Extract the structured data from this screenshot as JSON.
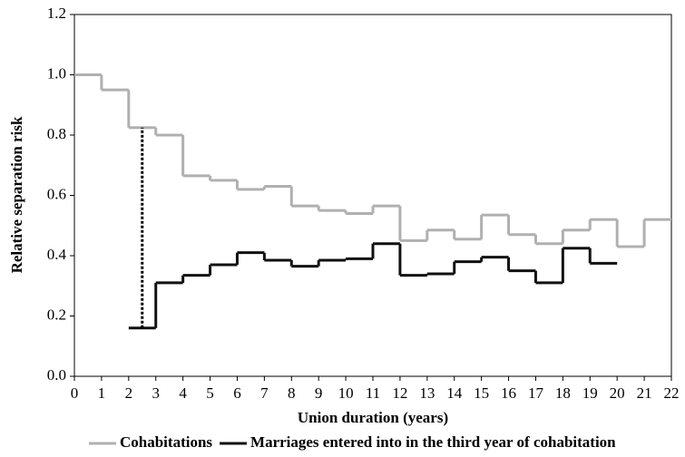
{
  "chart_data": {
    "type": "step",
    "xlabel": "Union duration  (years)",
    "ylabel": "Relative separation risk",
    "xlim": [
      0,
      22
    ],
    "xticks": [
      0,
      1,
      2,
      3,
      4,
      5,
      6,
      7,
      8,
      9,
      10,
      11,
      12,
      13,
      14,
      15,
      16,
      17,
      18,
      19,
      20,
      21,
      22
    ],
    "ylim": [
      0,
      1.2
    ],
    "yticks": [
      {
        "value": 0,
        "label": "0.0"
      },
      0.2,
      0.4,
      0.6,
      0.8,
      {
        "value": 1,
        "label": "1.0"
      },
      1.2
    ],
    "series": [
      {
        "name": "Cohabitations",
        "color": "#b0b0b0",
        "bins": [
          0,
          1,
          2,
          3,
          4,
          5,
          6,
          7,
          8,
          9,
          10,
          11,
          12,
          13,
          14,
          15,
          16,
          17,
          18,
          19,
          20,
          21,
          22
        ],
        "values": [
          1.0,
          0.95,
          0.825,
          0.8,
          0.665,
          0.65,
          0.62,
          0.63,
          0.565,
          0.55,
          0.54,
          0.565,
          0.45,
          0.485,
          0.455,
          0.535,
          0.47,
          0.44,
          0.485,
          0.52,
          0.43,
          0.52
        ]
      },
      {
        "name": "Marriages entered into in the third year of cohabitation",
        "color": "#111111",
        "bins": [
          2,
          3,
          4,
          5,
          6,
          7,
          8,
          9,
          10,
          11,
          12,
          13,
          14,
          15,
          16,
          17,
          18,
          19,
          20
        ],
        "values": [
          0.16,
          0.31,
          0.335,
          0.37,
          0.41,
          0.385,
          0.365,
          0.385,
          0.39,
          0.44,
          0.335,
          0.34,
          0.38,
          0.395,
          0.35,
          0.31,
          0.425,
          0.375
        ]
      }
    ]
  }
}
